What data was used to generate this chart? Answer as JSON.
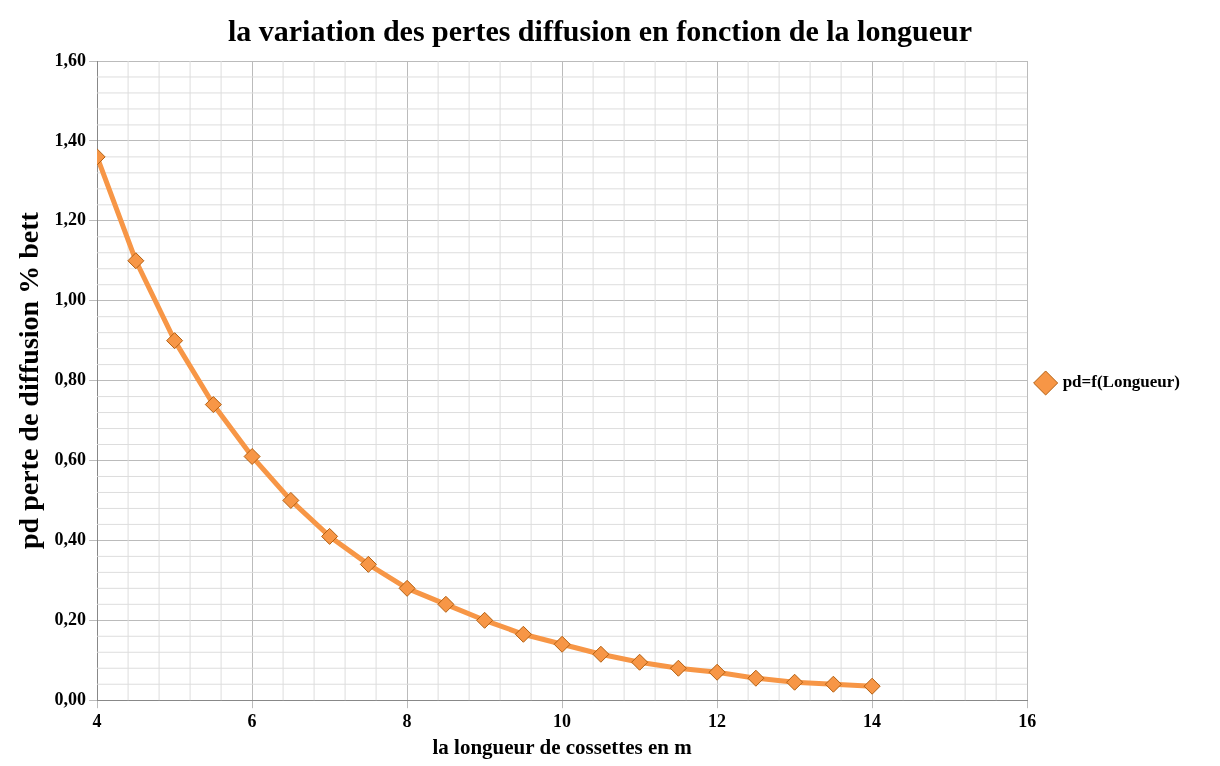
{
  "chart_data": {
    "type": "line",
    "title": "la variation des pertes diffusion en fonction de la longueur",
    "xlabel": "la longueur de cossettes en m",
    "ylabel": "pd perte de diffusion % bett",
    "x": [
      4,
      4.5,
      5,
      5.5,
      6,
      6.5,
      7,
      7.5,
      8,
      8.5,
      9,
      9.5,
      10,
      10.5,
      11,
      11.5,
      12,
      12.5,
      13,
      13.5,
      14
    ],
    "series": [
      {
        "name": "pd=f(Longueur)",
        "color": "#f79646",
        "values": [
          1.36,
          1.1,
          0.9,
          0.74,
          0.61,
          0.5,
          0.41,
          0.34,
          0.28,
          0.24,
          0.2,
          0.165,
          0.14,
          0.115,
          0.095,
          0.08,
          0.07,
          0.055,
          0.045,
          0.04,
          0.035
        ]
      }
    ],
    "xlim": [
      4,
      16
    ],
    "xticks": [
      4,
      6,
      8,
      10,
      12,
      14,
      16
    ],
    "ylim": [
      0,
      1.6
    ],
    "yticks": [
      {
        "value": 0,
        "label": "0,00"
      },
      {
        "value": 0.2,
        "label": "0,20"
      },
      {
        "value": 0.4,
        "label": "0,40"
      },
      {
        "value": 0.6,
        "label": "0,60"
      },
      {
        "value": 0.8,
        "label": "0,80"
      },
      {
        "value": 1,
        "label": "1,00"
      },
      {
        "value": 1.2,
        "label": "1,20"
      },
      {
        "value": 1.4,
        "label": "1,40"
      },
      {
        "value": 1.6,
        "label": "1,60"
      }
    ],
    "grid": true,
    "legend": "right",
    "marker": "diamond",
    "line_style": "solid"
  }
}
